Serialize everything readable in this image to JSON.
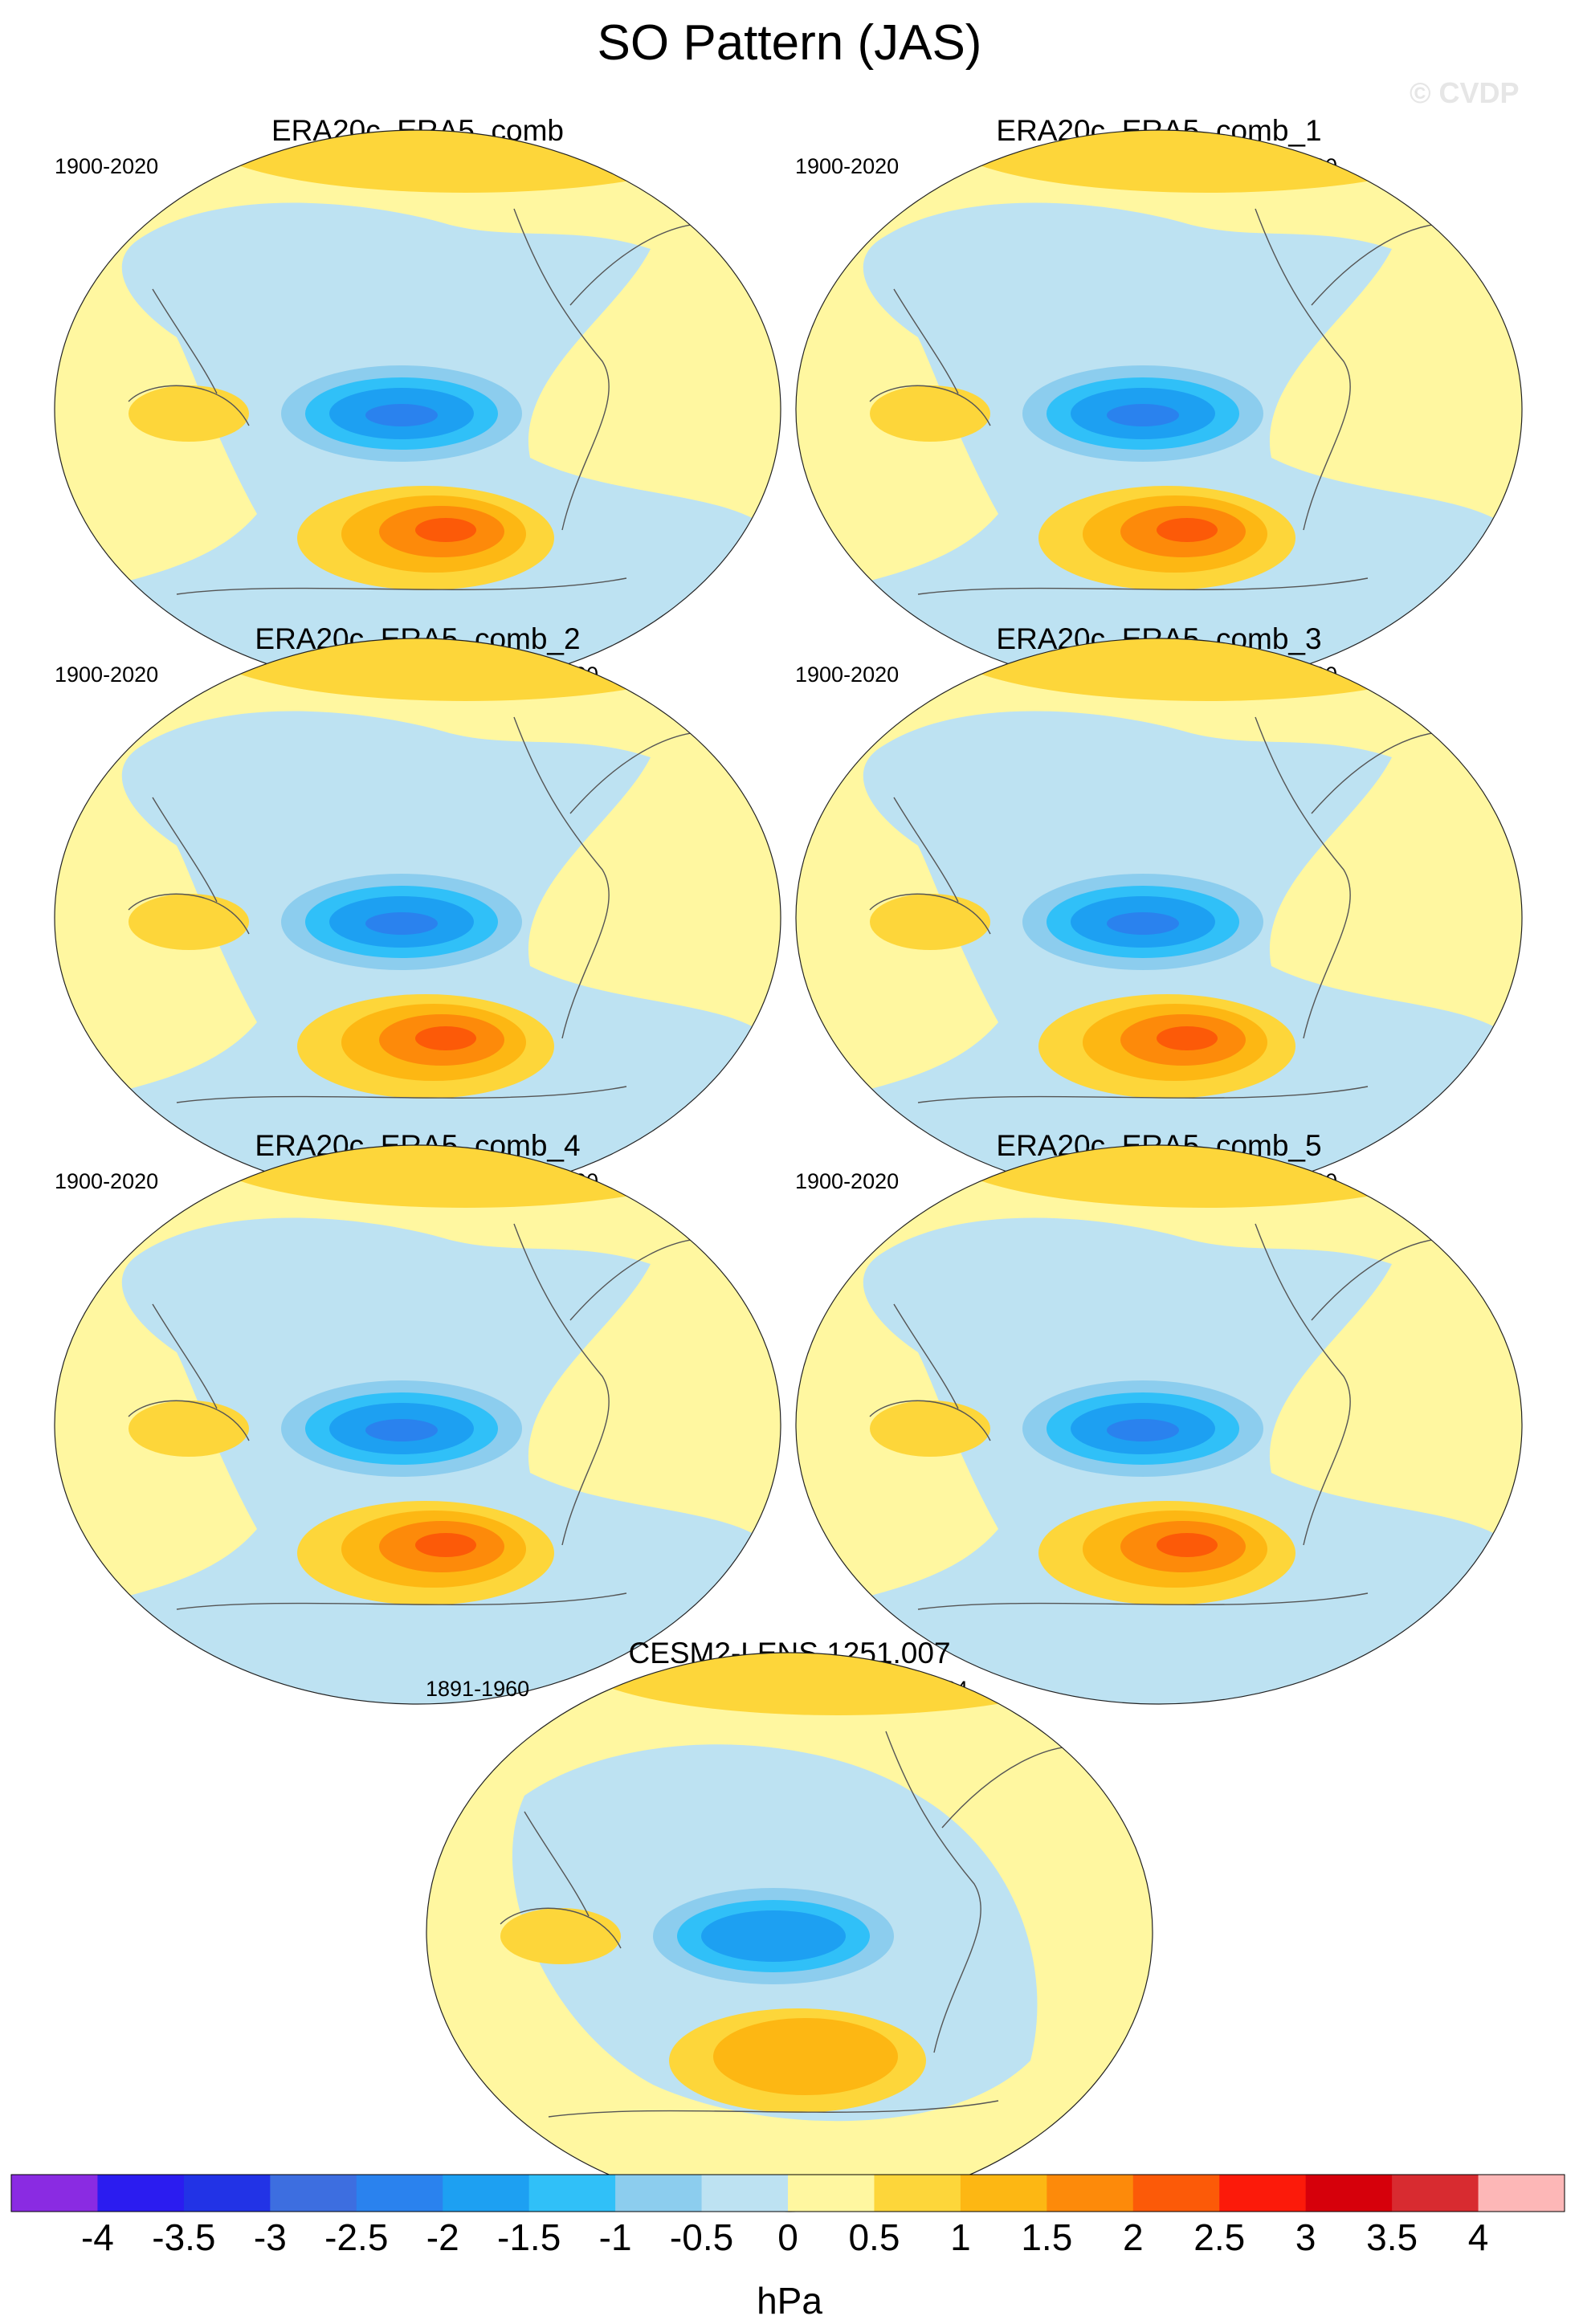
{
  "title": "SO Pattern (JAS)",
  "watermark": "© CVDP",
  "panels": [
    {
      "title": "ERA20c_ERA5_comb",
      "period": "1900-2020",
      "r": ""
    },
    {
      "title": "ERA20c_ERA5_comb_1",
      "period": "1900-2020",
      "r": "r=1.00"
    },
    {
      "title": "ERA20c_ERA5_comb_2",
      "period": "1900-2020",
      "r": "r=1.00"
    },
    {
      "title": "ERA20c_ERA5_comb_3",
      "period": "1900-2020",
      "r": "r=1.00"
    },
    {
      "title": "ERA20c_ERA5_comb_4",
      "period": "1900-2020",
      "r": "r=1.00"
    },
    {
      "title": "ERA20c_ERA5_comb_5",
      "period": "1900-2020",
      "r": "r=1.00"
    },
    {
      "title": "CESM2-LENS 1251.007",
      "period": "1891-1960",
      "r": "r=0.84"
    }
  ],
  "colorbar": {
    "units": "hPa",
    "labels": [
      "-4",
      "-3.5",
      "-3",
      "-2.5",
      "-2",
      "-1.5",
      "-1",
      "-0.5",
      "0",
      "0.5",
      "1",
      "1.5",
      "2",
      "2.5",
      "3",
      "3.5",
      "4"
    ],
    "colors": [
      "#8a2be2",
      "#2b1cf0",
      "#2233e6",
      "#3d6ee0",
      "#2a82ee",
      "#1da0f2",
      "#30c0f8",
      "#8ccdee",
      "#bde2f2",
      "#fff7a0",
      "#fdd63a",
      "#fdb713",
      "#fd8a0a",
      "#fc5a08",
      "#fc1a0a",
      "#d6000b",
      "#d82b30",
      "#fdb7b7"
    ]
  },
  "map_colors": {
    "land_background": "#fff7a0",
    "weak_negative": "#bde2f2",
    "moderate_negative": "#8ccdee",
    "negative_1": "#30c0f8",
    "negative_1_5": "#1da0f2",
    "negative_2": "#2a82ee",
    "weak_positive": "#fdd63a",
    "positive_1": "#fdb713",
    "positive_1_5": "#fd8a0a",
    "positive_2": "#fc5a08"
  }
}
